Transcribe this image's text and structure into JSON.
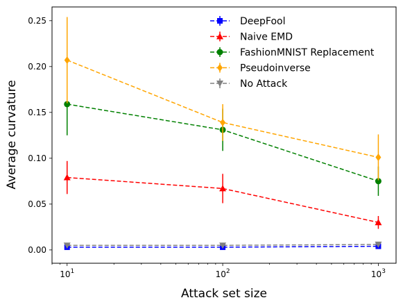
{
  "chart_data": {
    "type": "line",
    "xscale": "log",
    "x": [
      10,
      100,
      1000
    ],
    "xlim": [
      8,
      1300
    ],
    "ylim": [
      -0.0145,
      0.265
    ],
    "xlabel": "Attack set size",
    "ylabel": "Average curvature",
    "xticks": [
      {
        "value": 10,
        "base": "10",
        "exp": "1"
      },
      {
        "value": 100,
        "base": "10",
        "exp": "2"
      },
      {
        "value": 1000,
        "base": "10",
        "exp": "3"
      }
    ],
    "yticks": [
      {
        "value": 0.0,
        "label": "0.00"
      },
      {
        "value": 0.05,
        "label": "0.05"
      },
      {
        "value": 0.1,
        "label": "0.10"
      },
      {
        "value": 0.15,
        "label": "0.15"
      },
      {
        "value": 0.2,
        "label": "0.20"
      },
      {
        "value": 0.25,
        "label": "0.25"
      }
    ],
    "legend_position": "top-right",
    "series": [
      {
        "name": "DeepFool",
        "color": "#0000ff",
        "marker": "square",
        "values": [
          0.003,
          0.003,
          0.004
        ],
        "errors": [
          0.0015,
          0.0015,
          0.002
        ]
      },
      {
        "name": "Naive EMD",
        "color": "#ff0000",
        "marker": "triangle-up",
        "values": [
          0.079,
          0.067,
          0.03
        ],
        "errors": [
          0.018,
          0.016,
          0.007
        ]
      },
      {
        "name": "FashionMNIST Replacement",
        "color": "#008000",
        "marker": "circle",
        "values": [
          0.159,
          0.131,
          0.075
        ],
        "errors": [
          0.034,
          0.023,
          0.016
        ]
      },
      {
        "name": "Pseudoinverse",
        "color": "#ffa500",
        "marker": "diamond",
        "values": [
          0.207,
          0.139,
          0.101
        ],
        "errors": [
          0.047,
          0.02,
          0.025
        ]
      },
      {
        "name": "No Attack",
        "color": "#808080",
        "marker": "triangle-down",
        "values": [
          0.005,
          0.005,
          0.006
        ],
        "errors": [
          0.0012,
          0.0012,
          0.0015
        ]
      }
    ]
  }
}
